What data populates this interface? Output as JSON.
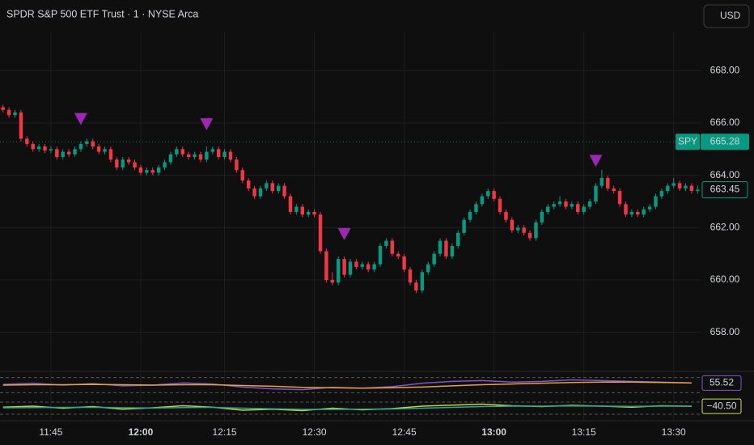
{
  "chart_data": [
    {
      "type": "candlestick",
      "title": "SPDR S&P 500 ETF Trust · 1 · NYSE Arca",
      "currency": "USD",
      "symbol": "SPY",
      "up_color": "#089981",
      "down_color": "#f23645",
      "signal_color": "#9c27b0",
      "grid": true,
      "xlim": [
        -0.5,
        116.5
      ],
      "ylim": [
        656.6,
        670.7
      ],
      "yticks": [
        {
          "value": 658,
          "label": "658.00"
        },
        {
          "value": 660,
          "label": "660.00"
        },
        {
          "value": 662,
          "label": "662.00"
        },
        {
          "value": 664,
          "label": "664.00"
        },
        {
          "value": 666,
          "label": "666.00"
        },
        {
          "value": 668,
          "label": "668.00"
        }
      ],
      "xticks": [
        {
          "value": 8,
          "label": "11:45"
        },
        {
          "value": 23,
          "label": "12:00"
        },
        {
          "value": 37,
          "label": "12:15"
        },
        {
          "value": 52,
          "label": "12:30"
        },
        {
          "value": 67,
          "label": "12:45"
        },
        {
          "value": 82,
          "label": "13:00"
        },
        {
          "value": 97,
          "label": "13:15"
        },
        {
          "value": 112,
          "label": "13:30"
        }
      ],
      "price_line": 665.28,
      "last_price": 663.45,
      "signals": [
        13,
        34,
        57,
        99
      ],
      "ohlc": [
        [
          666.6,
          666.7,
          666.4,
          666.5
        ],
        [
          666.5,
          666.6,
          666.2,
          666.3
        ],
        [
          666.3,
          666.5,
          666.2,
          666.4
        ],
        [
          666.4,
          666.5,
          665.3,
          665.4
        ],
        [
          665.4,
          665.5,
          665.1,
          665.2
        ],
        [
          665.2,
          665.3,
          664.9,
          665.0
        ],
        [
          665.0,
          665.2,
          664.9,
          665.1
        ],
        [
          665.1,
          665.2,
          664.85,
          664.95
        ],
        [
          664.95,
          665.1,
          664.85,
          665.0
        ],
        [
          665.0,
          665.1,
          664.6,
          664.7
        ],
        [
          664.7,
          665.0,
          664.6,
          664.9
        ],
        [
          664.9,
          665.0,
          664.7,
          664.8
        ],
        [
          664.8,
          665.1,
          664.7,
          665.0
        ],
        [
          665.0,
          665.3,
          664.9,
          665.2
        ],
        [
          665.2,
          665.4,
          665.1,
          665.3
        ],
        [
          665.3,
          665.4,
          665.0,
          665.1
        ],
        [
          665.1,
          665.2,
          664.8,
          664.9
        ],
        [
          664.9,
          665.1,
          664.8,
          665.0
        ],
        [
          665.0,
          665.1,
          664.5,
          664.6
        ],
        [
          664.6,
          664.7,
          664.2,
          664.3
        ],
        [
          664.3,
          664.7,
          664.2,
          664.6
        ],
        [
          664.6,
          664.7,
          664.4,
          664.5
        ],
        [
          664.5,
          664.6,
          664.2,
          664.3
        ],
        [
          664.3,
          664.4,
          664.0,
          664.1
        ],
        [
          664.1,
          664.3,
          664.0,
          664.2
        ],
        [
          664.2,
          664.3,
          664.0,
          664.1
        ],
        [
          664.1,
          664.4,
          664.0,
          664.3
        ],
        [
          664.3,
          664.6,
          664.2,
          664.5
        ],
        [
          664.5,
          664.9,
          664.4,
          664.8
        ],
        [
          664.8,
          665.1,
          664.7,
          665.0
        ],
        [
          665.0,
          665.1,
          664.7,
          664.8
        ],
        [
          664.8,
          664.9,
          664.6,
          664.7
        ],
        [
          664.7,
          664.9,
          664.6,
          664.8
        ],
        [
          664.8,
          664.9,
          664.5,
          664.6
        ],
        [
          664.6,
          665.1,
          664.5,
          664.9
        ],
        [
          664.9,
          665.1,
          664.8,
          665.0
        ],
        [
          665.0,
          665.1,
          664.6,
          664.7
        ],
        [
          664.7,
          665.0,
          664.6,
          664.9
        ],
        [
          664.9,
          665.0,
          664.5,
          664.6
        ],
        [
          664.6,
          664.7,
          664.1,
          664.2
        ],
        [
          664.2,
          664.3,
          663.7,
          663.8
        ],
        [
          663.8,
          663.9,
          663.4,
          663.5
        ],
        [
          663.5,
          663.6,
          663.1,
          663.2
        ],
        [
          663.2,
          663.6,
          663.1,
          663.5
        ],
        [
          663.5,
          663.8,
          663.4,
          663.7
        ],
        [
          663.7,
          663.8,
          663.3,
          663.4
        ],
        [
          663.4,
          663.7,
          663.3,
          663.6
        ],
        [
          663.6,
          663.7,
          663.1,
          663.2
        ],
        [
          663.2,
          663.3,
          662.5,
          662.6
        ],
        [
          662.6,
          662.9,
          662.5,
          662.8
        ],
        [
          662.8,
          662.9,
          662.4,
          662.5
        ],
        [
          662.5,
          662.7,
          662.4,
          662.6
        ],
        [
          662.6,
          662.7,
          662.4,
          662.5
        ],
        [
          662.5,
          662.6,
          661.0,
          661.1
        ],
        [
          661.1,
          661.2,
          659.9,
          660.0
        ],
        [
          660.0,
          660.3,
          659.8,
          659.9
        ],
        [
          659.9,
          660.9,
          659.8,
          660.8
        ],
        [
          660.8,
          660.9,
          660.1,
          660.2
        ],
        [
          660.2,
          660.8,
          660.1,
          660.7
        ],
        [
          660.7,
          660.8,
          660.4,
          660.5
        ],
        [
          660.5,
          660.7,
          660.4,
          660.6
        ],
        [
          660.6,
          660.7,
          660.3,
          660.4
        ],
        [
          660.4,
          660.7,
          660.3,
          660.6
        ],
        [
          660.6,
          661.4,
          660.5,
          661.3
        ],
        [
          661.3,
          661.6,
          661.2,
          661.5
        ],
        [
          661.5,
          661.6,
          660.9,
          661.0
        ],
        [
          661.0,
          661.1,
          660.8,
          660.9
        ],
        [
          660.9,
          661.0,
          660.3,
          660.4
        ],
        [
          660.4,
          660.5,
          659.8,
          659.9
        ],
        [
          659.9,
          660.0,
          659.5,
          659.6
        ],
        [
          659.6,
          660.4,
          659.5,
          660.3
        ],
        [
          660.3,
          660.7,
          660.2,
          660.6
        ],
        [
          660.6,
          661.1,
          660.5,
          661.0
        ],
        [
          661.0,
          661.6,
          660.9,
          661.5
        ],
        [
          661.5,
          661.6,
          660.8,
          660.9
        ],
        [
          660.9,
          661.4,
          660.8,
          661.3
        ],
        [
          661.3,
          661.9,
          661.2,
          661.8
        ],
        [
          661.8,
          662.4,
          661.7,
          662.3
        ],
        [
          662.3,
          662.7,
          662.2,
          662.6
        ],
        [
          662.6,
          663.0,
          662.5,
          662.9
        ],
        [
          662.9,
          663.3,
          662.8,
          663.2
        ],
        [
          663.2,
          663.5,
          663.1,
          663.4
        ],
        [
          663.4,
          663.5,
          663.0,
          663.1
        ],
        [
          663.1,
          663.2,
          662.5,
          662.6
        ],
        [
          662.6,
          662.7,
          662.2,
          662.3
        ],
        [
          662.3,
          662.4,
          661.8,
          661.9
        ],
        [
          661.9,
          662.1,
          661.8,
          662.0
        ],
        [
          662.0,
          662.1,
          661.7,
          661.8
        ],
        [
          661.8,
          661.9,
          661.5,
          661.6
        ],
        [
          661.6,
          662.3,
          661.5,
          662.2
        ],
        [
          662.2,
          662.7,
          662.1,
          662.6
        ],
        [
          662.6,
          662.9,
          662.5,
          662.8
        ],
        [
          662.8,
          663.0,
          662.7,
          662.9
        ],
        [
          662.9,
          663.2,
          662.8,
          663.0
        ],
        [
          663.0,
          663.1,
          662.7,
          662.8
        ],
        [
          662.8,
          663.0,
          662.7,
          662.9
        ],
        [
          662.9,
          663.0,
          662.5,
          662.6
        ],
        [
          662.6,
          662.9,
          662.5,
          662.8
        ],
        [
          662.8,
          663.1,
          662.7,
          663.0
        ],
        [
          663.0,
          663.7,
          662.9,
          663.6
        ],
        [
          663.6,
          664.2,
          663.5,
          663.9
        ],
        [
          663.9,
          664.0,
          663.4,
          663.5
        ],
        [
          663.5,
          663.6,
          663.3,
          663.4
        ],
        [
          663.4,
          663.5,
          662.8,
          662.9
        ],
        [
          662.9,
          663.0,
          662.4,
          662.5
        ],
        [
          662.5,
          662.7,
          662.4,
          662.6
        ],
        [
          662.6,
          662.7,
          662.4,
          662.5
        ],
        [
          662.5,
          662.8,
          662.4,
          662.7
        ],
        [
          662.7,
          662.9,
          662.6,
          662.8
        ],
        [
          662.8,
          663.3,
          662.7,
          663.2
        ],
        [
          663.2,
          663.5,
          663.1,
          663.4
        ],
        [
          663.4,
          663.7,
          663.3,
          663.6
        ],
        [
          663.6,
          663.9,
          663.5,
          663.7
        ],
        [
          663.7,
          663.8,
          663.4,
          663.5
        ],
        [
          663.5,
          663.7,
          663.4,
          663.6
        ],
        [
          663.6,
          663.7,
          663.3,
          663.4
        ],
        [
          663.4,
          663.6,
          663.3,
          663.45
        ]
      ]
    },
    {
      "type": "line",
      "ylim": [
        20,
        80
      ],
      "bands": [
        30,
        70
      ],
      "label_color": "#7e57c2",
      "x": [
        0,
        5,
        10,
        15,
        20,
        25,
        30,
        35,
        40,
        45,
        50,
        55,
        60,
        65,
        70,
        75,
        80,
        85,
        90,
        95,
        100,
        105,
        110,
        115
      ],
      "last_value": 55.52,
      "series": [
        {
          "color": "#7e57c2",
          "values": [
            52,
            55,
            50,
            54,
            48,
            50,
            56,
            53,
            45,
            40,
            38,
            44,
            42,
            46,
            55,
            60,
            62,
            58,
            60,
            64,
            62,
            60,
            58,
            55.52
          ]
        },
        {
          "color": "#e6a04a",
          "values": [
            50,
            51,
            51,
            52,
            51,
            50,
            51,
            51,
            49,
            47,
            44,
            43,
            42,
            43,
            45,
            48,
            51,
            53,
            55,
            57,
            58,
            58,
            57,
            56
          ]
        }
      ]
    },
    {
      "type": "line",
      "ylim": [
        -100,
        0
      ],
      "bands": [
        -80,
        -20
      ],
      "label_color": "#d4e157",
      "x": [
        0,
        5,
        10,
        15,
        20,
        25,
        30,
        35,
        40,
        45,
        50,
        55,
        60,
        65,
        70,
        75,
        80,
        85,
        90,
        95,
        100,
        105,
        110,
        115
      ],
      "last_value": {
        "value": -40.5,
        "label": "−40.50"
      },
      "series": [
        {
          "color": "#c6d23a",
          "values": [
            -45,
            -40,
            -50,
            -42,
            -55,
            -48,
            -38,
            -45,
            -60,
            -55,
            -62,
            -50,
            -58,
            -52,
            -40,
            -35,
            -30,
            -38,
            -42,
            -36,
            -40,
            -45,
            -38,
            -40.5
          ]
        },
        {
          "color": "#26a69a",
          "values": [
            -48,
            -47,
            -46,
            -46,
            -48,
            -49,
            -47,
            -46,
            -50,
            -53,
            -56,
            -56,
            -55,
            -54,
            -50,
            -46,
            -42,
            -40,
            -40,
            -39,
            -40,
            -41,
            -40,
            -40
          ]
        }
      ]
    }
  ]
}
